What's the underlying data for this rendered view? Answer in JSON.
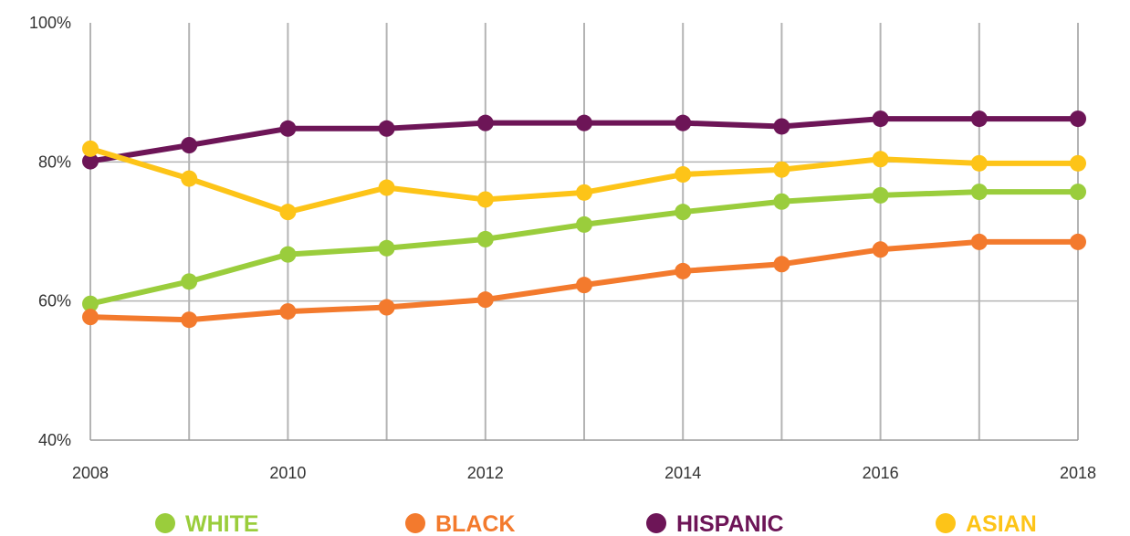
{
  "chart_data": {
    "type": "line",
    "title": "",
    "xlabel": "",
    "ylabel": "",
    "x": [
      2008,
      2009,
      2010,
      2011,
      2012,
      2013,
      2014,
      2015,
      2016,
      2017,
      2018
    ],
    "xlim": [
      2008,
      2018
    ],
    "ylim": [
      40,
      100
    ],
    "x_ticks": [
      2008,
      2010,
      2012,
      2014,
      2016,
      2018
    ],
    "x_tick_labels": [
      "2008",
      "2010",
      "2012",
      "2014",
      "2016",
      "2018"
    ],
    "y_ticks": [
      40,
      60,
      80,
      100
    ],
    "y_tick_labels": [
      "40%",
      "60%",
      "80%",
      "100%"
    ],
    "grid": true,
    "legend_position": "bottom",
    "series": [
      {
        "name": "WHITE",
        "color": "#9ACD3C",
        "values": [
          59.6,
          62.8,
          66.7,
          67.6,
          68.9,
          71.0,
          72.8,
          74.3,
          75.2,
          75.7,
          75.7
        ]
      },
      {
        "name": "BLACK",
        "color": "#F37A2D",
        "values": [
          57.7,
          57.3,
          58.5,
          59.1,
          60.2,
          62.3,
          64.3,
          65.3,
          67.4,
          68.5,
          68.5
        ]
      },
      {
        "name": "HISPANIC",
        "color": "#6D1557",
        "values": [
          80.1,
          82.4,
          84.8,
          84.8,
          85.6,
          85.6,
          85.6,
          85.1,
          86.2,
          86.2,
          86.2
        ]
      },
      {
        "name": "ASIAN",
        "color": "#FDC418",
        "values": [
          81.9,
          77.6,
          72.8,
          76.3,
          74.6,
          75.6,
          78.2,
          78.9,
          80.4,
          79.8,
          79.8
        ]
      }
    ]
  }
}
